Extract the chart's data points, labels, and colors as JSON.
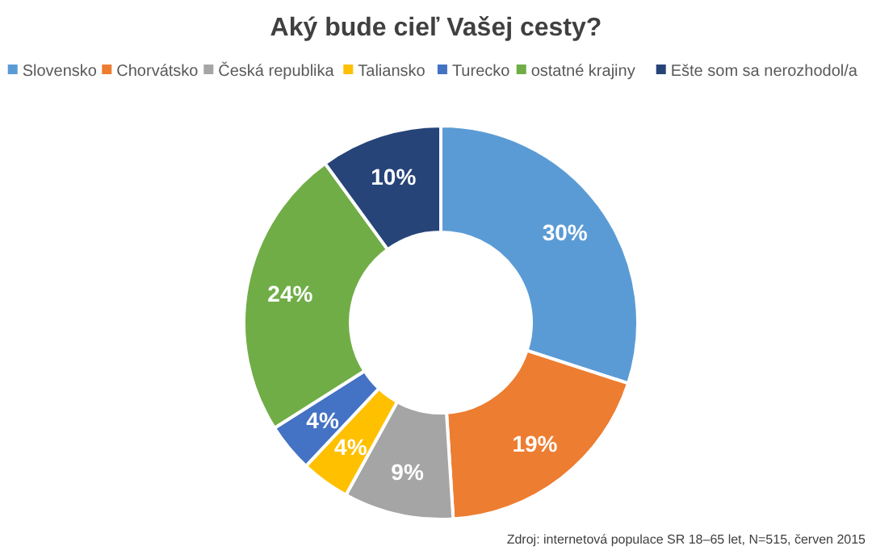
{
  "chart_data": {
    "type": "donut",
    "title": "Aký bude cieľ Vašej cesty?",
    "categories": [
      "Slovensko",
      "Chorvátsko",
      "Česká republika",
      "Taliansko",
      "Turecko",
      "ostatné krajiny",
      "Ešte som sa nerozhodol/a"
    ],
    "values": [
      30,
      19,
      9,
      4,
      4,
      24,
      10
    ],
    "colors": [
      "#5b9bd5",
      "#ed7d31",
      "#a5a5a5",
      "#ffc000",
      "#4472c4",
      "#70ad47",
      "#264478"
    ],
    "value_labels": [
      "30%",
      "19%",
      "9%",
      "4%",
      "4%",
      "24%",
      "10%"
    ],
    "legend": "top",
    "annotations": [
      "Zdroj: internetová populace SR 18–65 let, N=515, červen 2015"
    ]
  }
}
